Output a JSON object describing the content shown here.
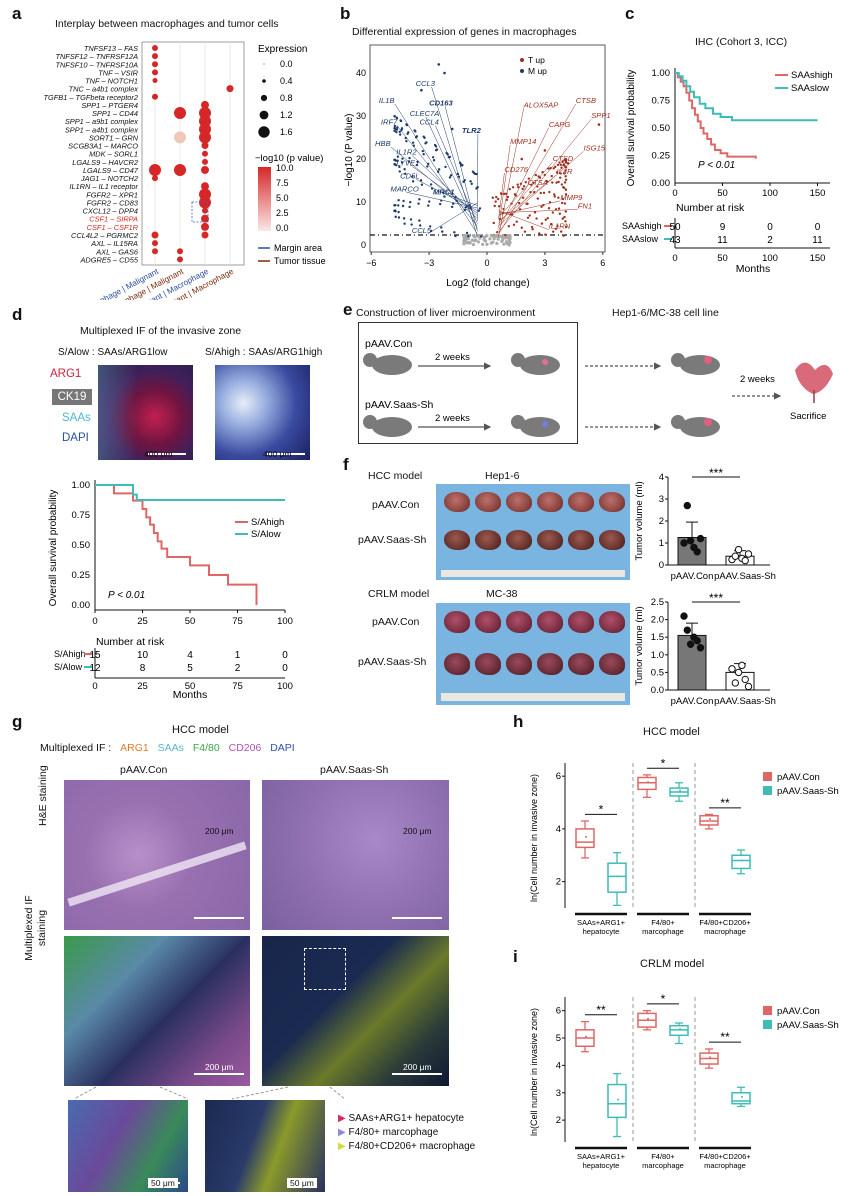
{
  "panels": {
    "a": "a",
    "b": "b",
    "c": "c",
    "d": "d",
    "e": "e",
    "f": "f",
    "g": "g",
    "h": "h",
    "i": "i"
  },
  "a": {
    "title": "Interplay between macrophages and tumor cells",
    "pairs": [
      "TNFSF13 – FAS",
      "TNFSF12 – TNFRSF12A",
      "TNFSF10 – TNFRSF10A",
      "TNF – VSIR",
      "TNF – NOTCH1",
      "TNC – a4b1 complex",
      "TGFB1 – TGFbeta receptor2",
      "SPP1 – PTGER4",
      "SPP1 – CD44",
      "SPP1 – a9b1 complex",
      "SPP1 – a4b1 complex",
      "SORT1 – GRN",
      "SCGB3A1 – MARCO",
      "MDK – SORL1",
      "LGALS9 – HAVCR2",
      "LGALS9 – CD47",
      "JAG1 – NOTCH2",
      "IL1RN – IL1 receptor",
      "FGFR2 – XPR1",
      "FGFR2 – CD83",
      "CXCL12 – DPP4",
      "CSF1 – SIRPA",
      "CSF1 – CSF1R",
      "CCL4L2 – PGRMC2",
      "AXL – IL15RA",
      "AXL – GAS6",
      "ADGRE5 – CD55"
    ],
    "highlight_color": "#d62728",
    "columns": [
      "Macrophage | Malignant",
      "Macrophage | Malignant",
      "Malignant | Macrophage",
      "Malignant | Macrophage"
    ],
    "legend_expr_title": "Expression",
    "legend_expr_vals": [
      "0.0",
      "0.4",
      "0.8",
      "1.2",
      "1.6"
    ],
    "legend_p_title": "−log10 (p value)",
    "legend_p_vals": [
      "10.0",
      "7.5",
      "5.0",
      "2.5",
      "0.0"
    ],
    "legend_margin": "Margin area",
    "legend_tumor": "Tumor tissue"
  },
  "b": {
    "title": "Differential expression of genes in macrophages",
    "ylabel": "−log10 (P value)",
    "xlabel": "Log2 (fold change)",
    "legend_t": "T up",
    "legend_m": "M up",
    "xticks": [
      "−6",
      "−3",
      "0",
      "3",
      "6"
    ],
    "yticks": [
      "0",
      "10",
      "20",
      "30",
      "40"
    ],
    "m_genes": [
      "CCL3",
      "IL1B",
      "CD163",
      "CLEC7A",
      "IRF7",
      "CCL4",
      "TLR2",
      "HBB",
      "IL1R2",
      "LYVE1",
      "CD5L",
      "MARCO",
      "MRC1",
      "CCL5"
    ],
    "t_genes": [
      "ALOX5AP",
      "CTSB",
      "SPP1",
      "CAPG",
      "MMP14",
      "ISG15",
      "CTSD",
      "IL4R",
      "CD276",
      "CTSA",
      "MMP9",
      "FN1",
      "IL1RN"
    ]
  },
  "c": {
    "title": "IHC (Cohort 3, ICC)",
    "ylabel": "Overall survival probability",
    "xlabel": "Months",
    "high_label": "SAAshigh",
    "low_label": "SAAslow",
    "pval": "P < 0.01",
    "risk_title": "Number at risk",
    "risk_high": [
      "50",
      "9",
      "0",
      "0"
    ],
    "risk_low": [
      "43",
      "11",
      "2",
      "11"
    ],
    "xticks": [
      "0",
      "50",
      "100",
      "150"
    ],
    "yticks": [
      "0.00",
      "0.25",
      "0.50",
      "0.75",
      "1.00"
    ]
  },
  "d": {
    "title": "Multiplexed IF of the invasive zone",
    "left_img": "S/Alow : SAAs/ARG1low",
    "right_img": "S/Ahigh : SAAs/ARG1high",
    "markers": [
      "ARG1",
      "CK19",
      "SAAs",
      "DAPI"
    ],
    "scale": "400 μm",
    "ylabel": "Overall survival probability",
    "xlabel": "Months",
    "high_label": "S/Ahigh",
    "low_label": "S/Alow",
    "pval": "P < 0.01",
    "risk_title": "Number at risk",
    "risk_high": [
      "15",
      "10",
      "4",
      "1",
      "0"
    ],
    "risk_low": [
      "12",
      "8",
      "5",
      "2",
      "0"
    ],
    "xticks": [
      "0",
      "25",
      "50",
      "75",
      "100"
    ],
    "yticks": [
      "0.00",
      "0.25",
      "0.50",
      "0.75",
      "1.00"
    ]
  },
  "e": {
    "title1": "Construction of liver microenvironment",
    "title2": "Hep1-6/MC-38 cell line",
    "con": "pAAV.Con",
    "sh": "pAAV.Saas-Sh",
    "weeks": "2 weeks",
    "sacrifice": "Sacrifice"
  },
  "f": {
    "hcc_model": "HCC model",
    "hep": "Hep1-6",
    "crlm_model": "CRLM model",
    "mc": "MC-38",
    "con": "pAAV.Con",
    "sh": "pAAV.Saas-Sh",
    "ylabel": "Tumor volume (ml)",
    "sig": "***",
    "hcc_yticks": [
      "0",
      "1",
      "2",
      "3",
      "4"
    ],
    "crlm_yticks": [
      "0.0",
      "0.5",
      "1.0",
      "1.5",
      "2.0",
      "2.5"
    ]
  },
  "g": {
    "title": "HCC model",
    "mif_label": "Multiplexed IF :",
    "markers": [
      "ARG1",
      "SAAs",
      "F4/80",
      "CD206",
      "DAPI"
    ],
    "marker_colors": [
      "#e07b24",
      "#58b4c8",
      "#3aa54a",
      "#b050b0",
      "#3050b0"
    ],
    "con": "pAAV.Con",
    "sh": "pAAV.Saas-Sh",
    "he": "H&E staining",
    "mif": "Multiplexed IF staining",
    "scale200": "200 μm",
    "scale50": "50 μm",
    "legend": [
      "SAAs+ARG1+ hepatocyte",
      "F4/80+ marcophage",
      "F4/80+CD206+ macrophage"
    ],
    "legend_colors": [
      "#d03060",
      "#8a8ad8",
      "#d8d840"
    ]
  },
  "h": {
    "title": "HCC model",
    "ylabel": "ln(Cell number in invasive zone)",
    "cats": [
      "SAAs+ARG1+ hepatocyte",
      "F4/80+ marcophage",
      "F4/80+CD206+ macrophage"
    ],
    "sig": [
      "*",
      "*",
      "**"
    ],
    "legend": [
      "pAAV.Con",
      "pAAV.Saas-Sh"
    ],
    "colors": [
      "#e06666",
      "#3fbcb5"
    ],
    "yticks": [
      "2",
      "4",
      "6"
    ]
  },
  "i": {
    "title": "CRLM model",
    "ylabel": "ln(Cell number in invasive zone)",
    "cats": [
      "SAAs+ARG1+ hepatocyte",
      "F4/80+ marcophage",
      "F4/80+CD206+ macrophage"
    ],
    "sig": [
      "**",
      "*",
      "**"
    ],
    "legend": [
      "pAAV.Con",
      "pAAV.Saas-Sh"
    ],
    "colors": [
      "#e06666",
      "#3fbcb5"
    ],
    "yticks": [
      "2",
      "3",
      "4",
      "5",
      "6"
    ]
  }
}
